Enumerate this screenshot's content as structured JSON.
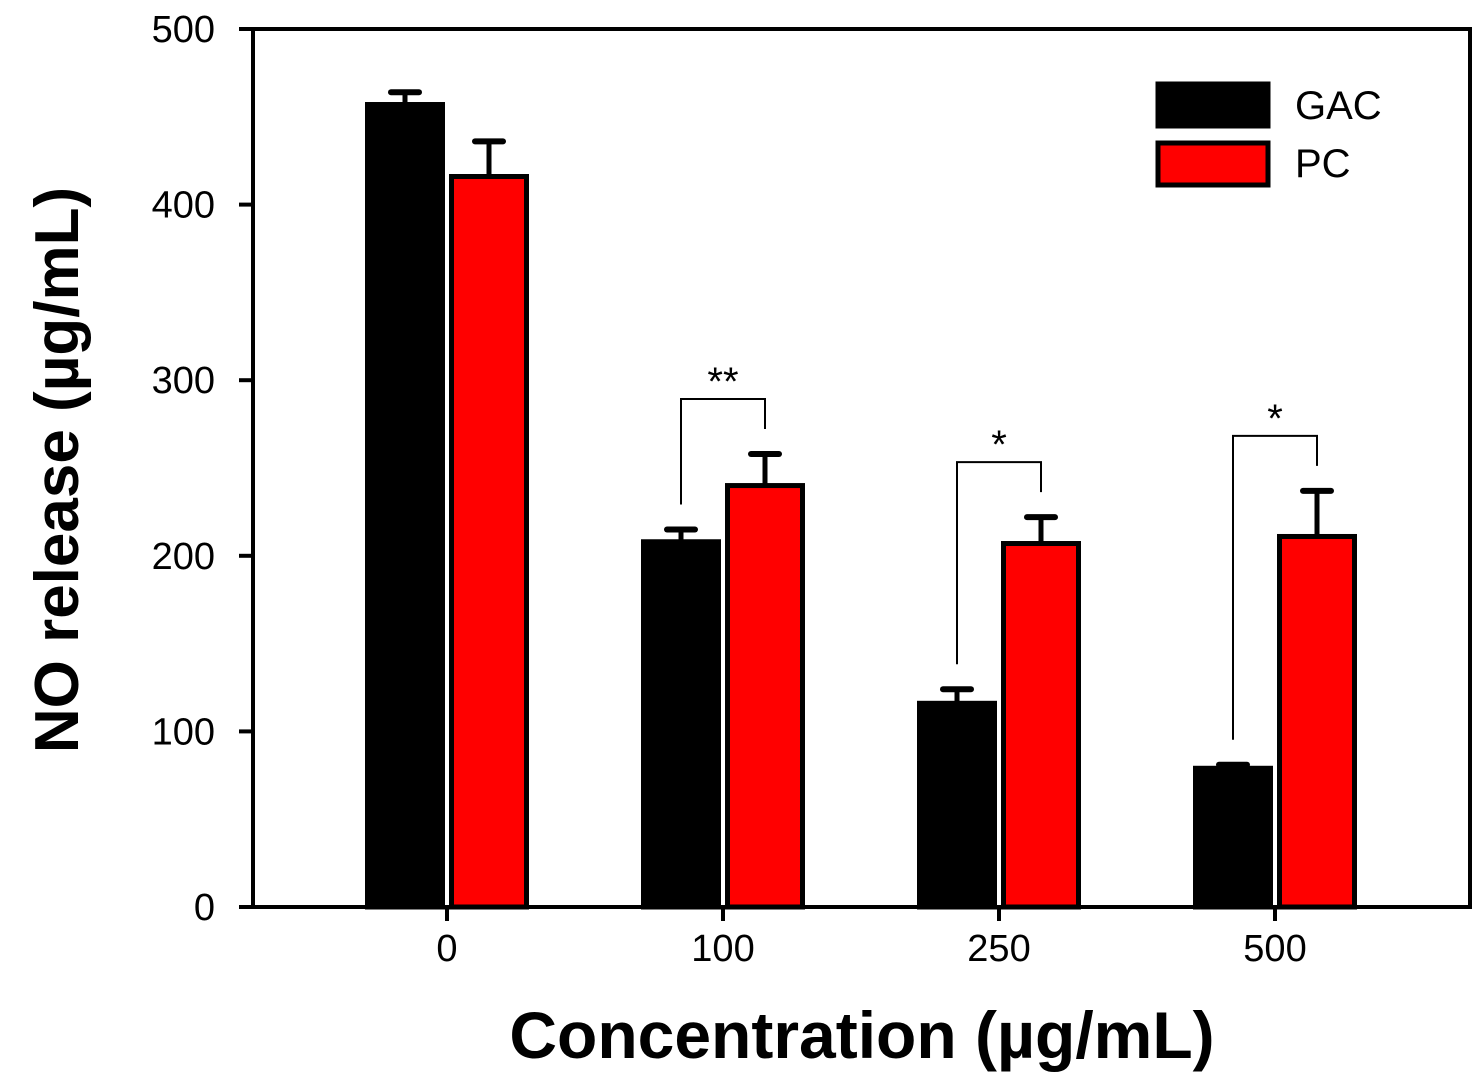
{
  "chart_data": {
    "type": "bar",
    "title": "",
    "xlabel": "Concentration (µg/mL)",
    "ylabel": "NO release (µg/mL)",
    "categories": [
      "0",
      "100",
      "250",
      "500"
    ],
    "ylim": [
      0,
      500
    ],
    "yticks": [
      0,
      100,
      200,
      300,
      400,
      500
    ],
    "ytick_labels": [
      "0",
      "100",
      "200",
      "300",
      "400",
      "500"
    ],
    "grid": false,
    "legend_position": "top-right",
    "series": [
      {
        "name": "GAC",
        "color": "#000000",
        "values": [
          457,
          208,
          116,
          79
        ],
        "errors": [
          7,
          7,
          8,
          2
        ]
      },
      {
        "name": "PC",
        "color": "#ff0000",
        "values": [
          416,
          240,
          207,
          211
        ],
        "errors": [
          20,
          18,
          15,
          26
        ]
      }
    ],
    "annotations": [
      {
        "category": "100",
        "label": "**",
        "between": [
          "GAC",
          "PC"
        ]
      },
      {
        "category": "250",
        "label": "*",
        "between": [
          "GAC",
          "PC"
        ]
      },
      {
        "category": "500",
        "label": "*",
        "between": [
          "GAC",
          "PC"
        ]
      }
    ]
  }
}
